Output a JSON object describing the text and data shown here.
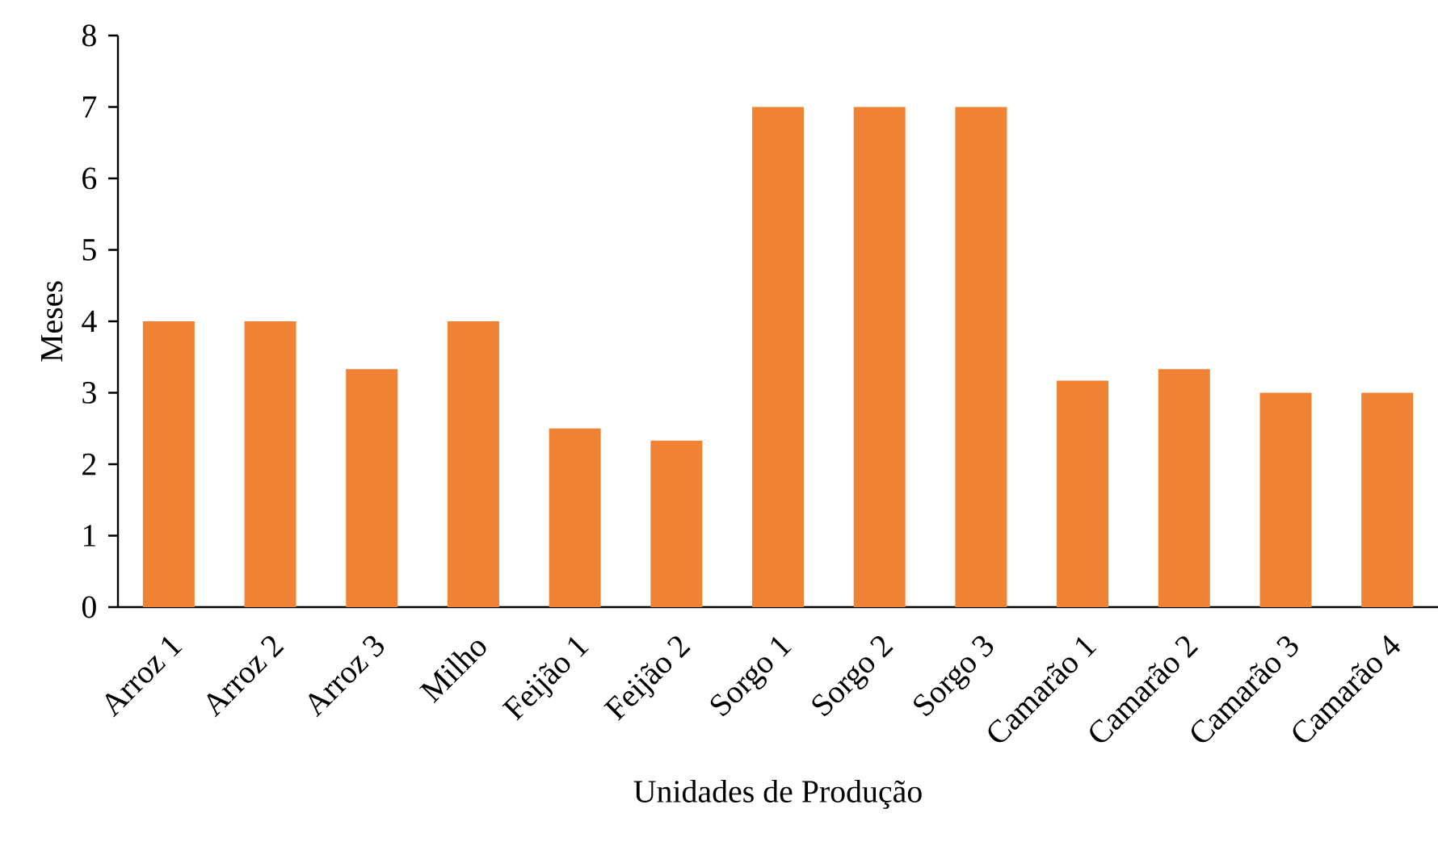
{
  "chart_data": {
    "type": "bar",
    "xlabel": "Unidades de Produção",
    "ylabel": "Meses",
    "categories": [
      "Arroz 1",
      "Arroz 2",
      "Arroz 3",
      "Milho",
      "Feijão 1",
      "Feijão 2",
      "Sorgo 1",
      "Sorgo 2",
      "Sorgo 3",
      "Camarão 1",
      "Camarão 2",
      "Camarão 3",
      "Camarão 4"
    ],
    "values": [
      4,
      4,
      3.33,
      4,
      2.5,
      2.33,
      7,
      7,
      7,
      3.17,
      3.33,
      3,
      3
    ],
    "color": "#f08234",
    "ylim": [
      0,
      8
    ],
    "yticks": [
      0,
      1,
      2,
      3,
      4,
      5,
      6,
      7,
      8
    ],
    "grid": false
  }
}
